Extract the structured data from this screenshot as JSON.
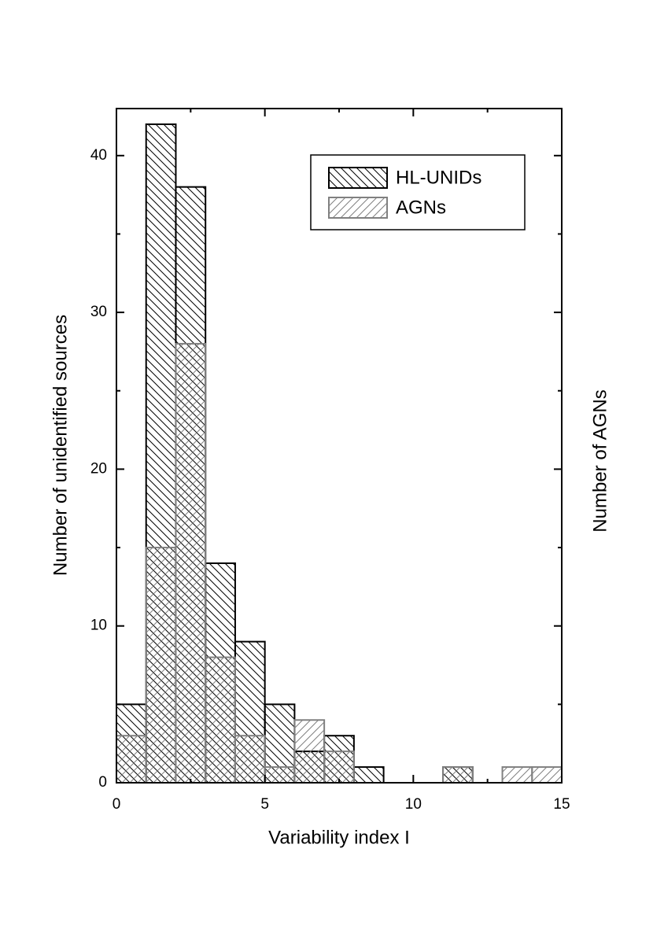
{
  "chart_data": {
    "type": "histogram",
    "x_label": "Variability index I",
    "y_label": "Number of unidentified sources",
    "y2_label": "Number of AGNs",
    "bins": [
      0,
      1,
      2,
      3,
      4,
      5,
      6,
      7,
      8,
      9,
      10,
      11,
      12,
      13,
      14,
      15
    ],
    "series": [
      {
        "name": "HL-UNIDs",
        "color": "#000000",
        "values": [
          5,
          42,
          38,
          14,
          9,
          5,
          2,
          3,
          1,
          0,
          0,
          1,
          0,
          0,
          0
        ]
      },
      {
        "name": "AGNs",
        "color": "#808080",
        "values": [
          3,
          15,
          28,
          8,
          3,
          1,
          4,
          2,
          0,
          0,
          0,
          1,
          0,
          1,
          1
        ]
      }
    ],
    "xlim": [
      0,
      15
    ],
    "xticks": [
      0,
      5,
      10,
      15
    ],
    "ylim": [
      0,
      43
    ],
    "yticks": [
      0,
      10,
      20,
      30,
      40
    ],
    "legend": "upper right"
  }
}
